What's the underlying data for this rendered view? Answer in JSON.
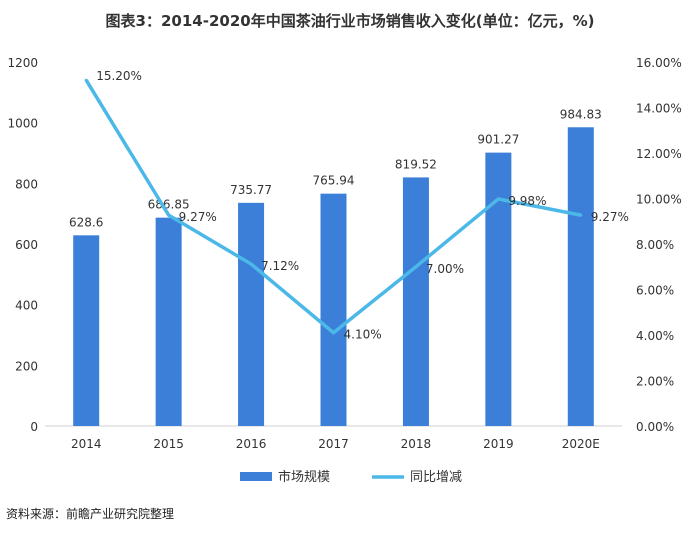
{
  "chart_data": {
    "type": "bar",
    "title": "图表3：2014-2020年中国茶油行业市场销售收入变化(单位：亿元，%)",
    "categories": [
      "2014",
      "2015",
      "2016",
      "2017",
      "2018",
      "2019",
      "2020E"
    ],
    "series": [
      {
        "name": "市场规模",
        "type": "bar",
        "axis": "left",
        "values": [
          628.6,
          686.85,
          735.77,
          765.94,
          819.52,
          901.27,
          984.83
        ],
        "labels": [
          "628.6",
          "686.85",
          "735.77",
          "765.94",
          "819.52",
          "901.27",
          "984.83"
        ]
      },
      {
        "name": "同比增减",
        "type": "line",
        "axis": "right",
        "values": [
          15.2,
          9.27,
          7.12,
          4.1,
          7.0,
          9.98,
          9.27
        ],
        "labels": [
          "15.20%",
          "9.27%",
          "7.12%",
          "4.10%",
          "7.00%",
          "9.98%",
          "9.27%"
        ]
      }
    ],
    "ylim": [
      0,
      1200
    ],
    "yticks": [
      "0",
      "200",
      "400",
      "600",
      "800",
      "1000",
      "1200"
    ],
    "y2lim": [
      0,
      16
    ],
    "y2ticks": [
      "0.00%",
      "2.00%",
      "4.00%",
      "6.00%",
      "8.00%",
      "10.00%",
      "12.00%",
      "14.00%",
      "16.00%"
    ],
    "grid": false,
    "legend": "bottom",
    "colors": {
      "bar": "#3b7fd9",
      "line": "#4cb8e8"
    }
  },
  "source": "资料来源：前瞻产业研究院整理"
}
